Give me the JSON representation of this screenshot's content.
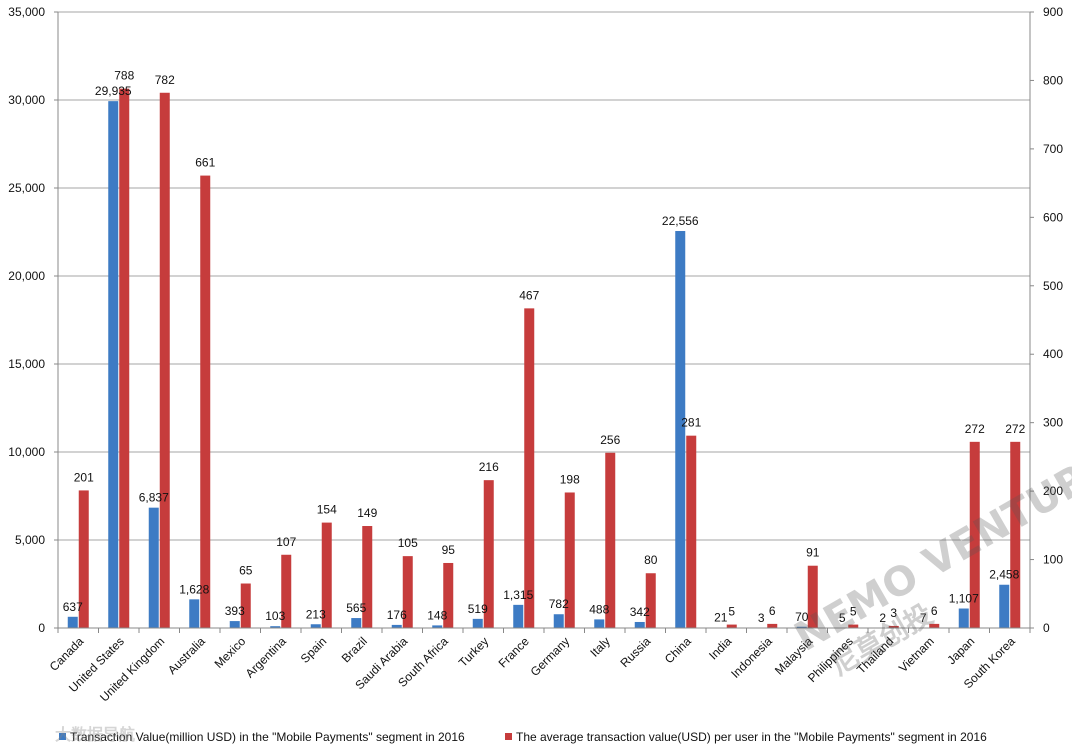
{
  "chart_data": {
    "type": "bar",
    "categories": [
      "Canada",
      "United States",
      "United Kingdom",
      "Australia",
      "Mexico",
      "Argentina",
      "Spain",
      "Brazil",
      "Saudi Arabia",
      "South Africa",
      "Turkey",
      "France",
      "Germany",
      "Italy",
      "Russia",
      "China",
      "India",
      "Indonesia",
      "Malaysia",
      "Philippines",
      "Thailand",
      "Vietnam",
      "Japan",
      "South Korea"
    ],
    "series": [
      {
        "name": "Transaction Value(million USD) in the \"Mobile Payments\" segment in 2016",
        "axis": "left",
        "color": "#3d7bc4",
        "values": [
          637,
          29935,
          6837,
          1628,
          393,
          103,
          213,
          565,
          176,
          148,
          519,
          1315,
          782,
          488,
          342,
          22556,
          21,
          3,
          70,
          5,
          2,
          7,
          1107,
          2458
        ],
        "labels": [
          "637",
          "29,935",
          "6,837",
          "1,628",
          "393",
          "103",
          "213",
          "565",
          "176",
          "148",
          "519",
          "1,315",
          "782",
          "488",
          "342",
          "22,556",
          "21",
          "3",
          "70",
          "5",
          "2",
          "7",
          "1,107",
          "2,458"
        ]
      },
      {
        "name": "The average transaction value(USD) per user in the \"Mobile Payments\" segment in 2016",
        "axis": "right",
        "color": "#c63c3c",
        "values": [
          201,
          788,
          782,
          661,
          65,
          107,
          154,
          149,
          105,
          95,
          216,
          467,
          198,
          256,
          80,
          281,
          5,
          6,
          91,
          5,
          3,
          6,
          272,
          272
        ],
        "labels": [
          "201",
          "788",
          "782",
          "661",
          "65",
          "107",
          "154",
          "149",
          "105",
          "95",
          "216",
          "467",
          "198",
          "256",
          "80",
          "281",
          "5",
          "6",
          "91",
          "5",
          "3",
          "6",
          "272",
          "272"
        ]
      }
    ],
    "y_left": {
      "ylim": [
        0,
        35000
      ],
      "ticks": [
        "0",
        "5,000",
        "10,000",
        "15,000",
        "20,000",
        "25,000",
        "30,000",
        "35,000"
      ]
    },
    "y_right": {
      "ylim": [
        0,
        900
      ],
      "ticks": [
        "0",
        "100",
        "200",
        "300",
        "400",
        "500",
        "600",
        "700",
        "800",
        "900"
      ]
    },
    "grid": true,
    "legend_position": "bottom",
    "watermarks": [
      "NEMO VENTURES",
      "尼莫创投",
      "大数据导航"
    ]
  }
}
